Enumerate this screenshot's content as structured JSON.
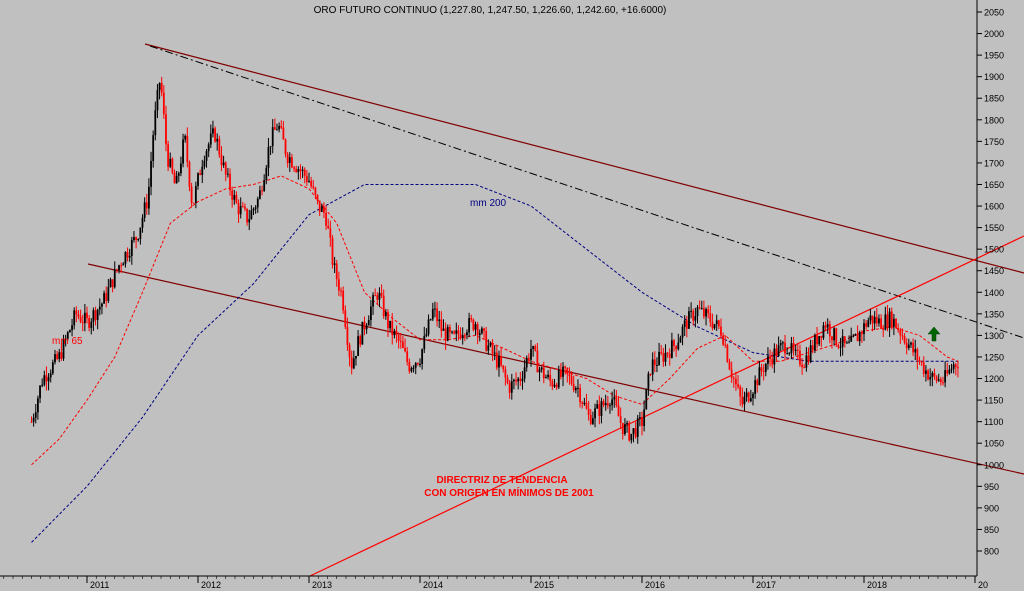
{
  "chart_data": {
    "type": "candlestick",
    "title": "ORO FUTURO CONTINUO (1,227.80, 1,247.50, 1,226.60, 1,242.60, +16.6000)",
    "y_ticks": [
      800,
      850,
      900,
      950,
      1000,
      1050,
      1100,
      1150,
      1200,
      1250,
      1300,
      1350,
      1400,
      1450,
      1500,
      1550,
      1600,
      1650,
      1700,
      1750,
      1800,
      1850,
      1900,
      1950,
      2000,
      2050
    ],
    "x_ticks": [
      "2011",
      "2012",
      "2013",
      "2014",
      "2015",
      "2016",
      "2017",
      "2018",
      "20"
    ],
    "ylim": [
      775,
      2070
    ],
    "price_path": [
      [
        2010.5,
        1100
      ],
      [
        2010.6,
        1200
      ],
      [
        2010.75,
        1250
      ],
      [
        2010.9,
        1350
      ],
      [
        2011.0,
        1330
      ],
      [
        2011.15,
        1380
      ],
      [
        2011.3,
        1470
      ],
      [
        2011.45,
        1530
      ],
      [
        2011.55,
        1620
      ],
      [
        2011.6,
        1780
      ],
      [
        2011.66,
        1900
      ],
      [
        2011.72,
        1720
      ],
      [
        2011.8,
        1640
      ],
      [
        2011.88,
        1760
      ],
      [
        2011.95,
        1600
      ],
      [
        2012.05,
        1720
      ],
      [
        2012.15,
        1770
      ],
      [
        2012.25,
        1670
      ],
      [
        2012.35,
        1600
      ],
      [
        2012.45,
        1570
      ],
      [
        2012.55,
        1620
      ],
      [
        2012.65,
        1750
      ],
      [
        2012.72,
        1790
      ],
      [
        2012.8,
        1720
      ],
      [
        2012.9,
        1690
      ],
      [
        2013.0,
        1660
      ],
      [
        2013.08,
        1600
      ],
      [
        2013.15,
        1580
      ],
      [
        2013.22,
        1460
      ],
      [
        2013.3,
        1390
      ],
      [
        2013.38,
        1230
      ],
      [
        2013.45,
        1290
      ],
      [
        2013.55,
        1360
      ],
      [
        2013.62,
        1400
      ],
      [
        2013.72,
        1320
      ],
      [
        2013.82,
        1280
      ],
      [
        2013.9,
        1230
      ],
      [
        2014.0,
        1250
      ],
      [
        2014.12,
        1360
      ],
      [
        2014.2,
        1310
      ],
      [
        2014.3,
        1290
      ],
      [
        2014.4,
        1320
      ],
      [
        2014.5,
        1330
      ],
      [
        2014.6,
        1280
      ],
      [
        2014.72,
        1230
      ],
      [
        2014.8,
        1180
      ],
      [
        2014.9,
        1200
      ],
      [
        2015.0,
        1270
      ],
      [
        2015.08,
        1220
      ],
      [
        2015.18,
        1190
      ],
      [
        2015.3,
        1210
      ],
      [
        2015.42,
        1180
      ],
      [
        2015.52,
        1110
      ],
      [
        2015.62,
        1130
      ],
      [
        2015.72,
        1160
      ],
      [
        2015.82,
        1090
      ],
      [
        2015.9,
        1070
      ],
      [
        2016.0,
        1100
      ],
      [
        2016.08,
        1230
      ],
      [
        2016.18,
        1250
      ],
      [
        2016.3,
        1280
      ],
      [
        2016.4,
        1330
      ],
      [
        2016.5,
        1360
      ],
      [
        2016.6,
        1340
      ],
      [
        2016.72,
        1310
      ],
      [
        2016.8,
        1220
      ],
      [
        2016.9,
        1140
      ],
      [
        2017.0,
        1180
      ],
      [
        2017.1,
        1230
      ],
      [
        2017.2,
        1260
      ],
      [
        2017.3,
        1280
      ],
      [
        2017.38,
        1250
      ],
      [
        2017.46,
        1240
      ],
      [
        2017.55,
        1280
      ],
      [
        2017.65,
        1330
      ],
      [
        2017.75,
        1290
      ],
      [
        2017.85,
        1270
      ],
      [
        2017.95,
        1300
      ],
      [
        2018.05,
        1340
      ],
      [
        2018.15,
        1330
      ],
      [
        2018.25,
        1340
      ],
      [
        2018.35,
        1300
      ],
      [
        2018.45,
        1260
      ],
      [
        2018.55,
        1220
      ],
      [
        2018.62,
        1200
      ],
      [
        2018.72,
        1195
      ],
      [
        2018.8,
        1230
      ],
      [
        2018.85,
        1240
      ]
    ],
    "ma65_path": [
      [
        2010.5,
        1000
      ],
      [
        2010.75,
        1060
      ],
      [
        2011.0,
        1150
      ],
      [
        2011.25,
        1250
      ],
      [
        2011.5,
        1400
      ],
      [
        2011.75,
        1560
      ],
      [
        2012.0,
        1610
      ],
      [
        2012.25,
        1640
      ],
      [
        2012.5,
        1650
      ],
      [
        2012.75,
        1670
      ],
      [
        2013.0,
        1640
      ],
      [
        2013.25,
        1560
      ],
      [
        2013.5,
        1400
      ],
      [
        2013.75,
        1340
      ],
      [
        2014.0,
        1290
      ],
      [
        2014.25,
        1290
      ],
      [
        2014.5,
        1300
      ],
      [
        2014.75,
        1270
      ],
      [
        2015.0,
        1240
      ],
      [
        2015.25,
        1220
      ],
      [
        2015.5,
        1200
      ],
      [
        2015.75,
        1160
      ],
      [
        2016.0,
        1140
      ],
      [
        2016.25,
        1200
      ],
      [
        2016.5,
        1270
      ],
      [
        2016.75,
        1300
      ],
      [
        2017.0,
        1240
      ],
      [
        2017.25,
        1240
      ],
      [
        2017.5,
        1260
      ],
      [
        2017.75,
        1280
      ],
      [
        2018.0,
        1310
      ],
      [
        2018.25,
        1320
      ],
      [
        2018.5,
        1300
      ],
      [
        2018.75,
        1250
      ],
      [
        2018.85,
        1240
      ]
    ],
    "ma200_path": [
      [
        2010.5,
        820
      ],
      [
        2011.0,
        950
      ],
      [
        2011.5,
        1110
      ],
      [
        2012.0,
        1300
      ],
      [
        2012.5,
        1420
      ],
      [
        2013.0,
        1580
      ],
      [
        2013.5,
        1650
      ],
      [
        2014.0,
        1650
      ],
      [
        2014.5,
        1650
      ],
      [
        2015.0,
        1600
      ],
      [
        2015.5,
        1500
      ],
      [
        2016.0,
        1400
      ],
      [
        2016.5,
        1320
      ],
      [
        2017.0,
        1260
      ],
      [
        2017.5,
        1240
      ],
      [
        2018.0,
        1240
      ],
      [
        2018.5,
        1240
      ],
      [
        2018.85,
        1240
      ]
    ],
    "annotations": {
      "mm65": "mm 65",
      "mm200": "mm 200",
      "trend_line1": "DIRECTRIZ DE TENDENCIA",
      "trend_line2": "CON ORIGEN EN MÍNIMOS DE 2001"
    },
    "colors": {
      "background": "#c0c0c0",
      "up": "#000000",
      "down": "#ff0000",
      "ma65": "#ff0000",
      "ma200": "#000080",
      "channel": "#800000",
      "trendline": "#ff0000",
      "arrow": "#006400"
    }
  }
}
